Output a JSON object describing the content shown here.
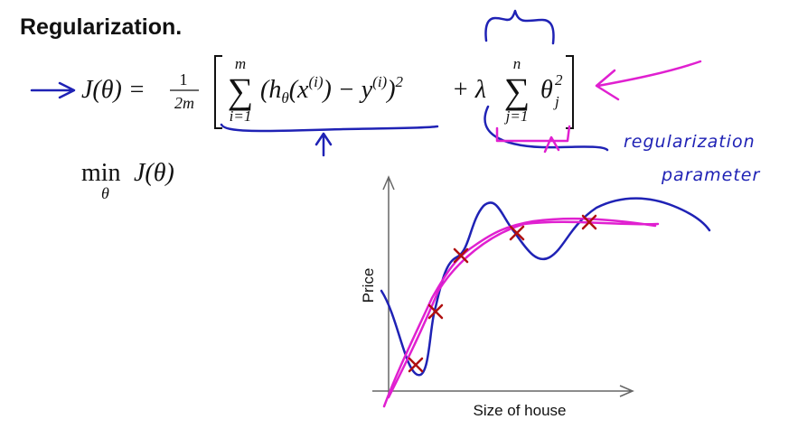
{
  "title": "Regularization.",
  "cost_function": {
    "lhs": "J(θ) =",
    "fraction": {
      "numerator": "1",
      "denominator": "2m"
    },
    "sum1": {
      "symbol": "∑",
      "upper": "m",
      "lower": "i=1"
    },
    "term1": [
      "(h",
      "θ",
      "(x",
      "(i)",
      ") − y",
      "(i)",
      ")",
      "2"
    ],
    "plus_lambda": "+ λ",
    "sum2": {
      "symbol": "∑",
      "upper": "n",
      "lower": "j=1"
    },
    "term2": [
      "θ",
      "2",
      "j"
    ]
  },
  "minimization": {
    "operator": "min",
    "subscript": "θ",
    "expression": "J(θ)"
  },
  "annotation": [
    "regularization",
    "parameter"
  ],
  "plot": {
    "y_label": "Price",
    "x_label": "Size of house"
  }
}
